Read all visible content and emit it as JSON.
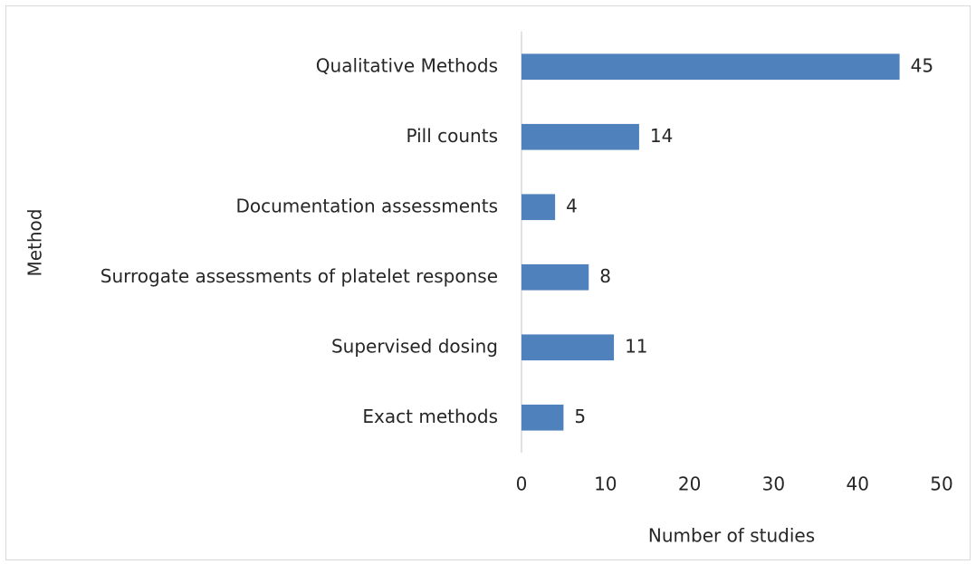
{
  "chart_data": {
    "type": "bar",
    "orientation": "horizontal",
    "categories": [
      "Qualitative Methods",
      "Pill counts",
      "Documentation assessments",
      "Surrogate assessments of platelet response",
      "Supervised dosing",
      "Exact methods"
    ],
    "values": [
      45,
      14,
      4,
      8,
      11,
      5
    ],
    "color": "#4f81bd",
    "xlabel": "Number of studies",
    "ylabel": "Method",
    "xlim": [
      0,
      50
    ],
    "xticks": [
      0,
      10,
      20,
      30,
      40,
      50
    ],
    "grid": false
  }
}
